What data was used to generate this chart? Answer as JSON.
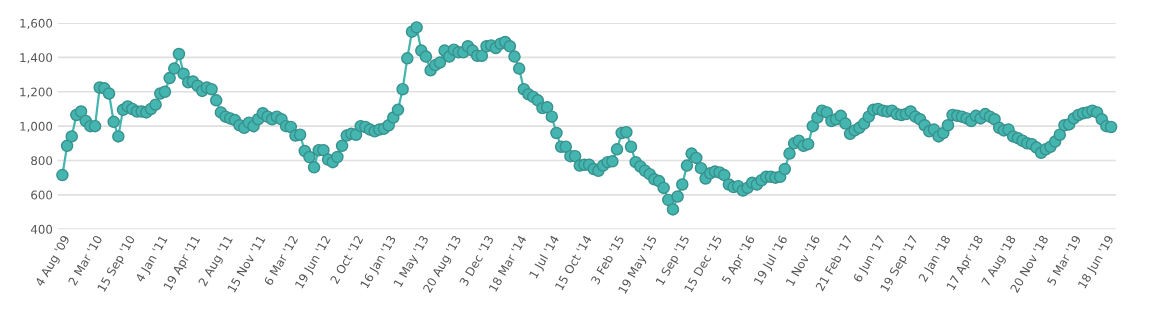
{
  "chart_data": {
    "type": "line",
    "categories": [
      "4 Aug '09",
      null,
      null,
      null,
      null,
      null,
      null,
      "2 Mar '10",
      null,
      null,
      null,
      null,
      null,
      null,
      "15 Sep '10",
      null,
      null,
      null,
      null,
      null,
      null,
      "4 Jan '11",
      null,
      null,
      null,
      null,
      null,
      null,
      "19 Apr '11",
      null,
      null,
      null,
      null,
      null,
      null,
      "2 Aug '11",
      null,
      null,
      null,
      null,
      null,
      null,
      "15 Nov '11",
      null,
      null,
      null,
      null,
      null,
      null,
      "6 Mar '12",
      null,
      null,
      null,
      null,
      null,
      null,
      "19 Jun '12",
      null,
      null,
      null,
      null,
      null,
      null,
      "2 Oct '12",
      null,
      null,
      null,
      null,
      null,
      null,
      "16 Jan '13",
      null,
      null,
      null,
      null,
      null,
      null,
      "1 May '13",
      null,
      null,
      null,
      null,
      null,
      null,
      "20 Aug '13",
      null,
      null,
      null,
      null,
      null,
      null,
      "3 Dec '13",
      null,
      null,
      null,
      null,
      null,
      null,
      "18 Mar '14",
      null,
      null,
      null,
      null,
      null,
      null,
      "1 Jul '14",
      null,
      null,
      null,
      null,
      null,
      null,
      "15 Oct '14",
      null,
      null,
      null,
      null,
      null,
      null,
      "3 Feb '15",
      null,
      null,
      null,
      null,
      null,
      null,
      "19 May '15",
      null,
      null,
      null,
      null,
      null,
      null,
      "1 Sep '15",
      null,
      null,
      null,
      null,
      null,
      null,
      "15 Dec '15",
      null,
      null,
      null,
      null,
      null,
      null,
      "5 Apr '16",
      null,
      null,
      null,
      null,
      null,
      null,
      "19 Jul '16",
      null,
      null,
      null,
      null,
      null,
      null,
      "1 Nov '16",
      null,
      null,
      null,
      null,
      null,
      null,
      "21 Feb '17",
      null,
      null,
      null,
      null,
      null,
      null,
      "6 Jun '17",
      null,
      null,
      null,
      null,
      null,
      null,
      "19 Sep '17",
      null,
      null,
      null,
      null,
      null,
      null,
      "2 Jan '18",
      null,
      null,
      null,
      null,
      null,
      null,
      "17 Apr '18",
      null,
      null,
      null,
      null,
      null,
      null,
      "7 Aug '18",
      null,
      null,
      null,
      null,
      null,
      null,
      "20 Nov '18",
      null,
      null,
      null,
      null,
      null,
      null,
      "5 Mar '19",
      null,
      null,
      null,
      null,
      null,
      null,
      "18 Jun '19",
      null
    ],
    "series": [
      {
        "color": "#45b5b0",
        "values": [
          715,
          885,
          940,
          1065,
          1085,
          1030,
          1000,
          1000,
          1225,
          1220,
          1190,
          1025,
          940,
          1095,
          1115,
          1100,
          1085,
          1085,
          1080,
          1100,
          1125,
          1190,
          1200,
          1280,
          1335,
          1420,
          1305,
          1255,
          1260,
          1235,
          1205,
          1225,
          1215,
          1150,
          1080,
          1055,
          1045,
          1035,
          1005,
          990,
          1020,
          1000,
          1040,
          1075,
          1055,
          1040,
          1055,
          1040,
          1000,
          995,
          945,
          950,
          855,
          820,
          760,
          860,
          860,
          805,
          790,
          820,
          885,
          945,
          955,
          950,
          1000,
          995,
          980,
          970,
          980,
          985,
          1005,
          1050,
          1095,
          1215,
          1395,
          1550,
          1575,
          1440,
          1405,
          1325,
          1355,
          1370,
          1440,
          1405,
          1445,
          1430,
          1430,
          1465,
          1440,
          1410,
          1410,
          1465,
          1470,
          1455,
          1480,
          1490,
          1465,
          1405,
          1335,
          1215,
          1185,
          1170,
          1150,
          1105,
          1110,
          1055,
          960,
          880,
          880,
          825,
          825,
          770,
          775,
          775,
          750,
          740,
          770,
          790,
          795,
          865,
          960,
          965,
          880,
          790,
          765,
          740,
          720,
          690,
          680,
          640,
          570,
          515,
          590,
          660,
          770,
          840,
          815,
          755,
          695,
          725,
          735,
          730,
          715,
          660,
          645,
          650,
          625,
          640,
          670,
          660,
          685,
          705,
          705,
          700,
          705,
          750,
          840,
          900,
          915,
          885,
          895,
          1000,
          1050,
          1090,
          1080,
          1030,
          1040,
          1060,
          1015,
          955,
          975,
          990,
          1015,
          1055,
          1095,
          1100,
          1090,
          1085,
          1090,
          1070,
          1065,
          1070,
          1085,
          1055,
          1040,
          1005,
          970,
          980,
          940,
          960,
          1005,
          1065,
          1060,
          1055,
          1045,
          1030,
          1060,
          1045,
          1070,
          1055,
          1040,
          990,
          975,
          980,
          940,
          930,
          915,
          900,
          895,
          875,
          845,
          865,
          880,
          910,
          950,
          1005,
          1010,
          1045,
          1065,
          1075,
          1080,
          1090,
          1080,
          1040,
          1000,
          995
        ]
      }
    ],
    "ylim": [
      400,
      1600
    ],
    "yticks": [
      400,
      600,
      800,
      {
        "value": 1000,
        "label": "1,000"
      },
      {
        "value": 1200,
        "label": "1,200"
      },
      {
        "value": 1400,
        "label": "1,400"
      },
      {
        "value": 1600,
        "label": "1,600"
      }
    ],
    "grid": "y",
    "marker": "circle",
    "line_style": "solid"
  }
}
